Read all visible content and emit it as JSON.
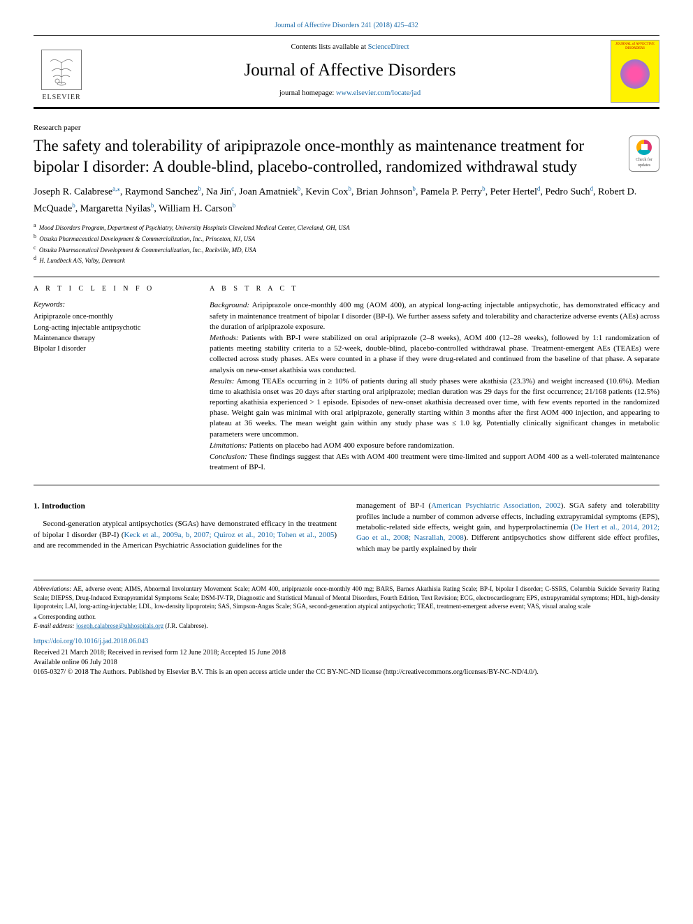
{
  "journal": {
    "citation": "Journal of Affective Disorders 241 (2018) 425–432",
    "contents_prefix": "Contents lists available at ",
    "contents_link": "ScienceDirect",
    "title": "Journal of Affective Disorders",
    "homepage_prefix": "journal homepage: ",
    "homepage_link": "www.elsevier.com/locate/jad",
    "publisher": "ELSEVIER",
    "cover_text": "JOURNAL of AFFECTIVE DISORDERS"
  },
  "article_type": "Research paper",
  "title": "The safety and tolerability of aripiprazole once-monthly as maintenance treatment for bipolar I disorder: A double-blind, placebo-controlled, randomized withdrawal study",
  "updates_badge": "Check for updates",
  "authors_html": "Joseph R. Calabrese|a,⁎|, Raymond Sanchez|b|, Na Jin|c|, Joan Amatniek|b|, Kevin Cox|b|, Brian Johnson|b|, Pamela P. Perry|b|, Peter Hertel|d|, Pedro Such|d|, Robert D. McQuade|b|, Margaretta Nyilas|b|, William H. Carson|b|",
  "affiliations": [
    {
      "k": "a",
      "t": "Mood Disorders Program, Department of Psychiatry, University Hospitals Cleveland Medical Center, Cleveland, OH, USA"
    },
    {
      "k": "b",
      "t": "Otsuka Pharmaceutical Development & Commercialization, Inc., Princeton, NJ, USA"
    },
    {
      "k": "c",
      "t": "Otsuka Pharmaceutical Development & Commercialization, Inc., Rockville, MD, USA"
    },
    {
      "k": "d",
      "t": "H. Lundbeck A/S, Valby, Denmark"
    }
  ],
  "info": {
    "heading": "A R T I C L E  I N F O",
    "kw_label": "Keywords:",
    "keywords": [
      "Aripiprazole once-monthly",
      "Long-acting injectable antipsychotic",
      "Maintenance therapy",
      "Bipolar I disorder"
    ]
  },
  "abstract": {
    "heading": "A B S T R A C T",
    "sections": [
      {
        "h": "Background:",
        "t": "Aripiprazole once-monthly 400 mg (AOM 400), an atypical long-acting injectable antipsychotic, has demonstrated efficacy and safety in maintenance treatment of bipolar I disorder (BP-I). We further assess safety and tolerability and characterize adverse events (AEs) across the duration of aripiprazole exposure."
      },
      {
        "h": "Methods:",
        "t": "Patients with BP-I were stabilized on oral aripiprazole (2–8 weeks), AOM 400 (12–28 weeks), followed by 1:1 randomization of patients meeting stability criteria to a 52-week, double-blind, placebo-controlled withdrawal phase. Treatment-emergent AEs (TEAEs) were collected across study phases. AEs were counted in a phase if they were drug-related and continued from the baseline of that phase. A separate analysis on new-onset akathisia was conducted."
      },
      {
        "h": "Results:",
        "t": "Among TEAEs occurring in ≥ 10% of patients during all study phases were akathisia (23.3%) and weight increased (10.6%). Median time to akathisia onset was 20 days after starting oral aripiprazole; median duration was 29 days for the first occurrence; 21/168 patients (12.5%) reporting akathisia experienced > 1 episode. Episodes of new-onset akathisia decreased over time, with few events reported in the randomized phase. Weight gain was minimal with oral aripiprazole, generally starting within 3 months after the first AOM 400 injection, and appearing to plateau at 36 weeks. The mean weight gain within any study phase was ≤ 1.0 kg. Potentially clinically significant changes in metabolic parameters were uncommon."
      },
      {
        "h": "Limitations:",
        "t": "Patients on placebo had AOM 400 exposure before randomization."
      },
      {
        "h": "Conclusion:",
        "t": "These findings suggest that AEs with AOM 400 treatment were time-limited and support AOM 400 as a well-tolerated maintenance treatment of BP-I."
      }
    ]
  },
  "intro": {
    "heading": "1. Introduction",
    "col1_pre": "Second-generation atypical antipsychotics (SGAs) have demonstrated efficacy in the treatment of bipolar I disorder (BP-I) (",
    "col1_ref": "Keck et al., 2009a, b, 2007; Quiroz et al., 2010; Tohen et al., 2005",
    "col1_post": ") and are recommended in the American Psychiatric Association guidelines for the",
    "col2_pre": "management of BP-I (",
    "col2_ref1": "American Psychiatric Association, 2002",
    "col2_mid": "). SGA safety and tolerability profiles include a number of common adverse effects, including extrapyramidal symptoms (EPS), metabolic-related side effects, weight gain, and hyperprolactinemia (",
    "col2_ref2": "De Hert et al., 2014, 2012; Gao et al., 2008; Nasrallah, 2008",
    "col2_post": "). Different antipsychotics show different side effect profiles, which may be partly explained by their"
  },
  "footnotes": {
    "abbr_label": "Abbreviations:",
    "abbr": "AE, adverse event; AIMS, Abnormal Involuntary Movement Scale; AOM 400, aripiprazole once-monthly 400 mg; BARS, Barnes Akathisia Rating Scale; BP-I, bipolar I disorder; C-SSRS, Columbia Suicide Severity Rating Scale; DIEPSS, Drug-Induced Extrapyramidal Symptoms Scale; DSM-IV-TR, Diagnostic and Statistical Manual of Mental Disorders, Fourth Edition, Text Revision; ECG, electrocardiogram; EPS, extrapyramidal symptoms; HDL, high-density lipoprotein; LAI, long-acting-injectable; LDL, low-density lipoprotein; SAS, Simpson-Angus Scale; SGA, second-generation atypical antipsychotic; TEAE, treatment-emergent adverse event; VAS, visual analog scale",
    "corr": "⁎ Corresponding author.",
    "email_label": "E-mail address: ",
    "email": "joseph.calabrese@uhhospitals.org",
    "email_after": " (J.R. Calabrese).",
    "doi": "https://doi.org/10.1016/j.jad.2018.06.043",
    "history1": "Received 21 March 2018; Received in revised form 12 June 2018; Accepted 15 June 2018",
    "history2": "Available online 06 July 2018",
    "copyright": "0165-0327/ © 2018 The Authors. Published by Elsevier B.V. This is an open access article under the CC BY-NC-ND license (http://creativecommons.org/licenses/BY-NC-ND/4.0/)."
  },
  "colors": {
    "link": "#1a6aa8",
    "cover_bg": "#fff200"
  }
}
